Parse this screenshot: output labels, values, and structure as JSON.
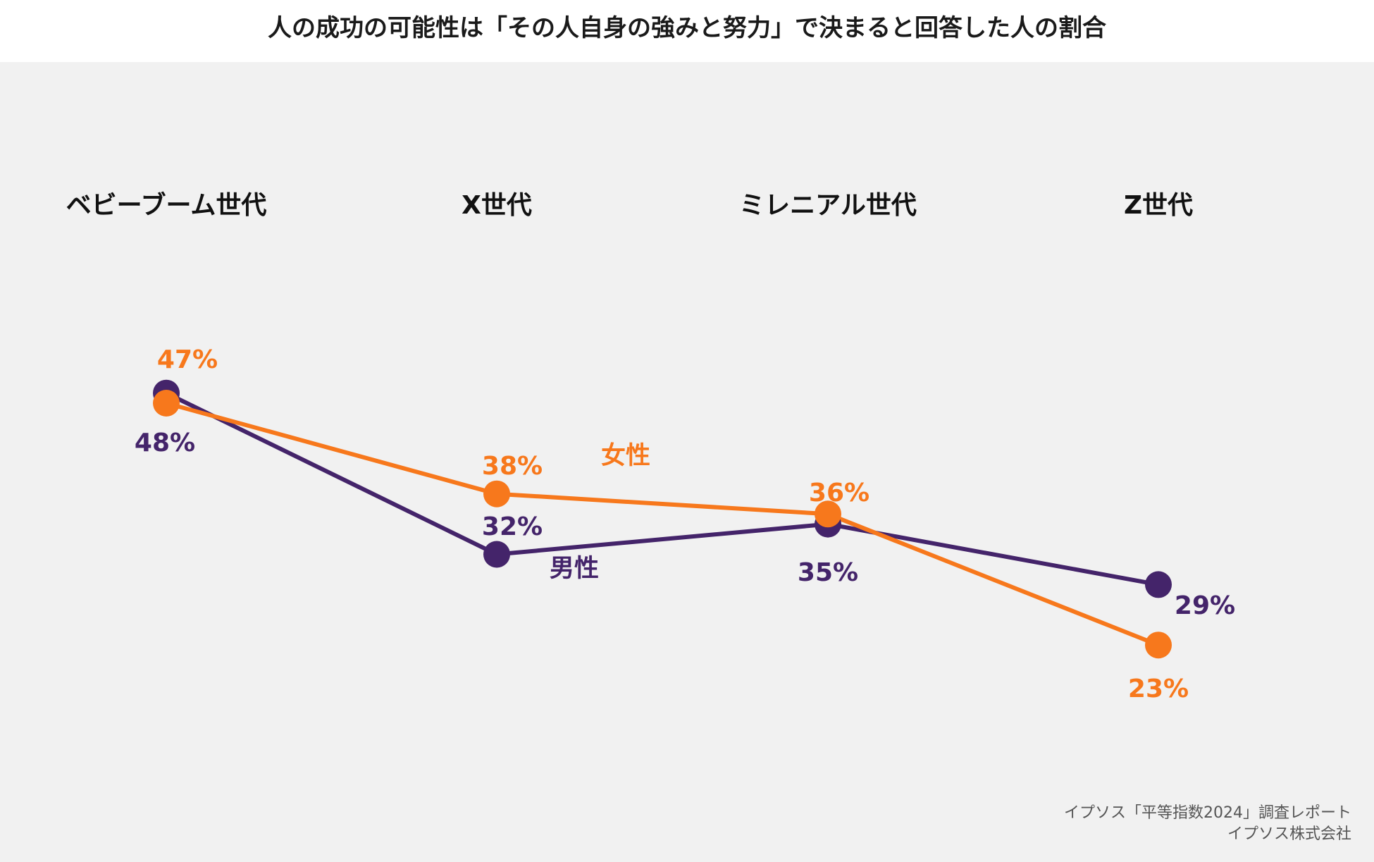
{
  "chart_data": {
    "type": "line",
    "title": "人の成功の可能性は「その人自身の強みと努力」で決まると回答した人の割合",
    "categories": [
      "ベビーブーム世代",
      "X世代",
      "ミレニアル世代",
      "Z世代"
    ],
    "series": [
      {
        "name": "男性",
        "values": [
          48,
          32,
          35,
          29
        ],
        "labels": [
          "48%",
          "32%",
          "35%",
          "29%"
        ],
        "color": "#44246a"
      },
      {
        "name": "女性",
        "values": [
          47,
          38,
          36,
          23
        ],
        "labels": [
          "47%",
          "38%",
          "36%",
          "23%"
        ],
        "color": "#f7781c"
      }
    ],
    "ylim": [
      0,
      60
    ],
    "grid": false,
    "legend": "inline"
  },
  "source": {
    "line1": "イプソス「平等指数2024」調査レポート",
    "line2": "イプソス株式会社"
  }
}
